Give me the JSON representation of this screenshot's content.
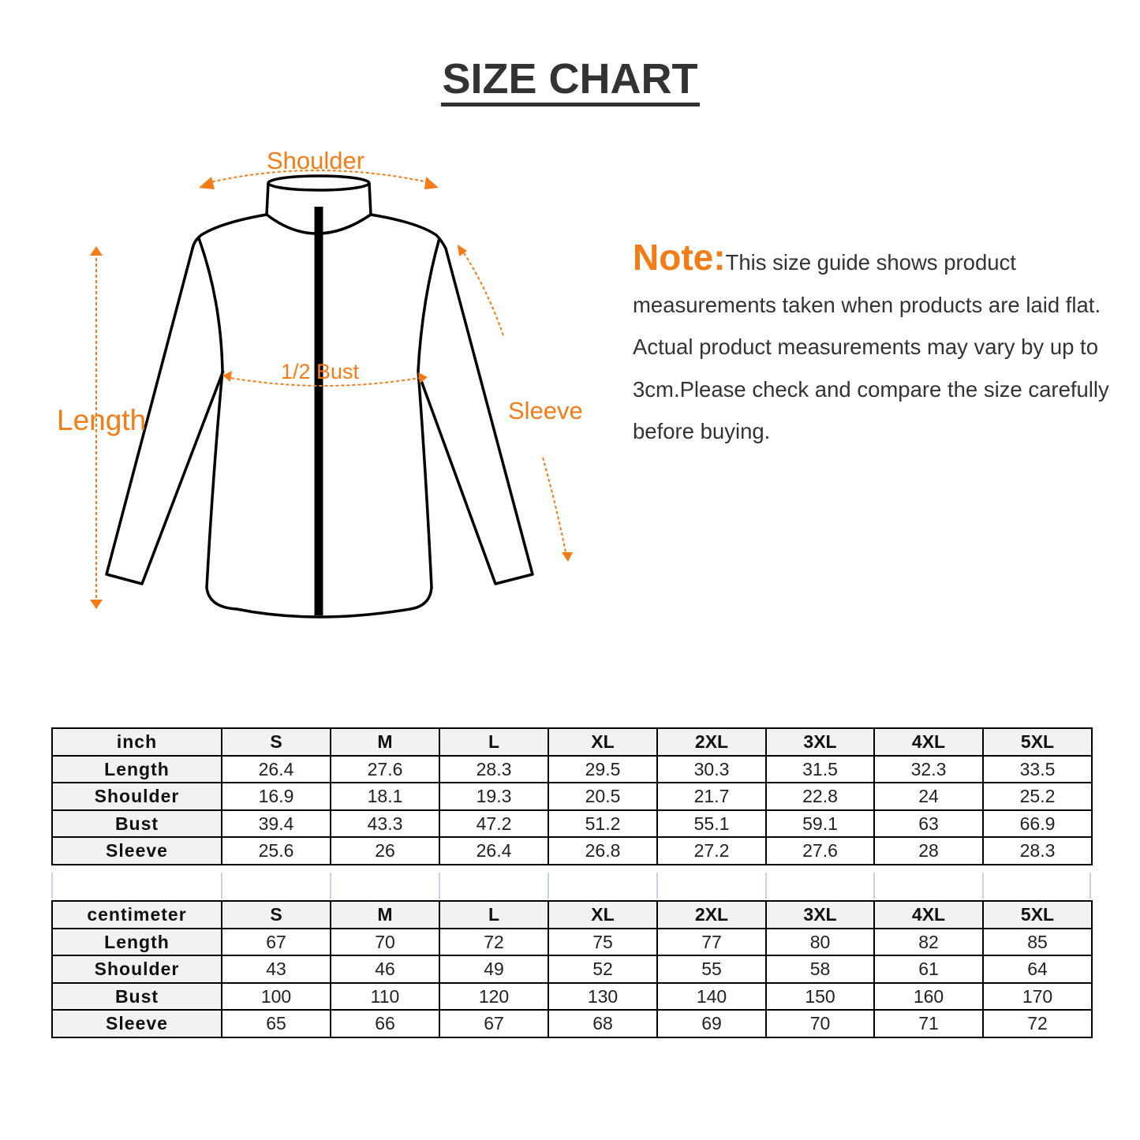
{
  "title": "SIZE CHART",
  "diagram": {
    "labels": {
      "shoulder": "Shoulder",
      "bust": "1/2 Bust",
      "length": "Length",
      "sleeve": "Sleeve"
    },
    "colors": {
      "accent": "#f47c17",
      "outline": "#000000"
    }
  },
  "note": {
    "heading": "Note:",
    "text": "This size guide shows product measurements taken when products are laid flat. Actual product measurements may vary by up to 3cm.Please check and compare the size carefully before buying."
  },
  "tables": [
    {
      "unit": "inch",
      "sizes": [
        "S",
        "M",
        "L",
        "XL",
        "2XL",
        "3XL",
        "4XL",
        "5XL"
      ],
      "rows": [
        {
          "label": "Length",
          "values": [
            "26.4",
            "27.6",
            "28.3",
            "29.5",
            "30.3",
            "31.5",
            "32.3",
            "33.5"
          ]
        },
        {
          "label": "Shoulder",
          "values": [
            "16.9",
            "18.1",
            "19.3",
            "20.5",
            "21.7",
            "22.8",
            "24",
            "25.2"
          ]
        },
        {
          "label": "Bust",
          "values": [
            "39.4",
            "43.3",
            "47.2",
            "51.2",
            "55.1",
            "59.1",
            "63",
            "66.9"
          ]
        },
        {
          "label": "Sleeve",
          "values": [
            "25.6",
            "26",
            "26.4",
            "26.8",
            "27.2",
            "27.6",
            "28",
            "28.3"
          ]
        }
      ]
    },
    {
      "unit": "centimeter",
      "sizes": [
        "S",
        "M",
        "L",
        "XL",
        "2XL",
        "3XL",
        "4XL",
        "5XL"
      ],
      "rows": [
        {
          "label": "Length",
          "values": [
            "67",
            "70",
            "72",
            "75",
            "77",
            "80",
            "82",
            "85"
          ]
        },
        {
          "label": "Shoulder",
          "values": [
            "43",
            "46",
            "49",
            "52",
            "55",
            "58",
            "61",
            "64"
          ]
        },
        {
          "label": "Bust",
          "values": [
            "100",
            "110",
            "120",
            "130",
            "140",
            "150",
            "160",
            "170"
          ]
        },
        {
          "label": "Sleeve",
          "values": [
            "65",
            "66",
            "67",
            "68",
            "69",
            "70",
            "71",
            "72"
          ]
        }
      ]
    }
  ]
}
